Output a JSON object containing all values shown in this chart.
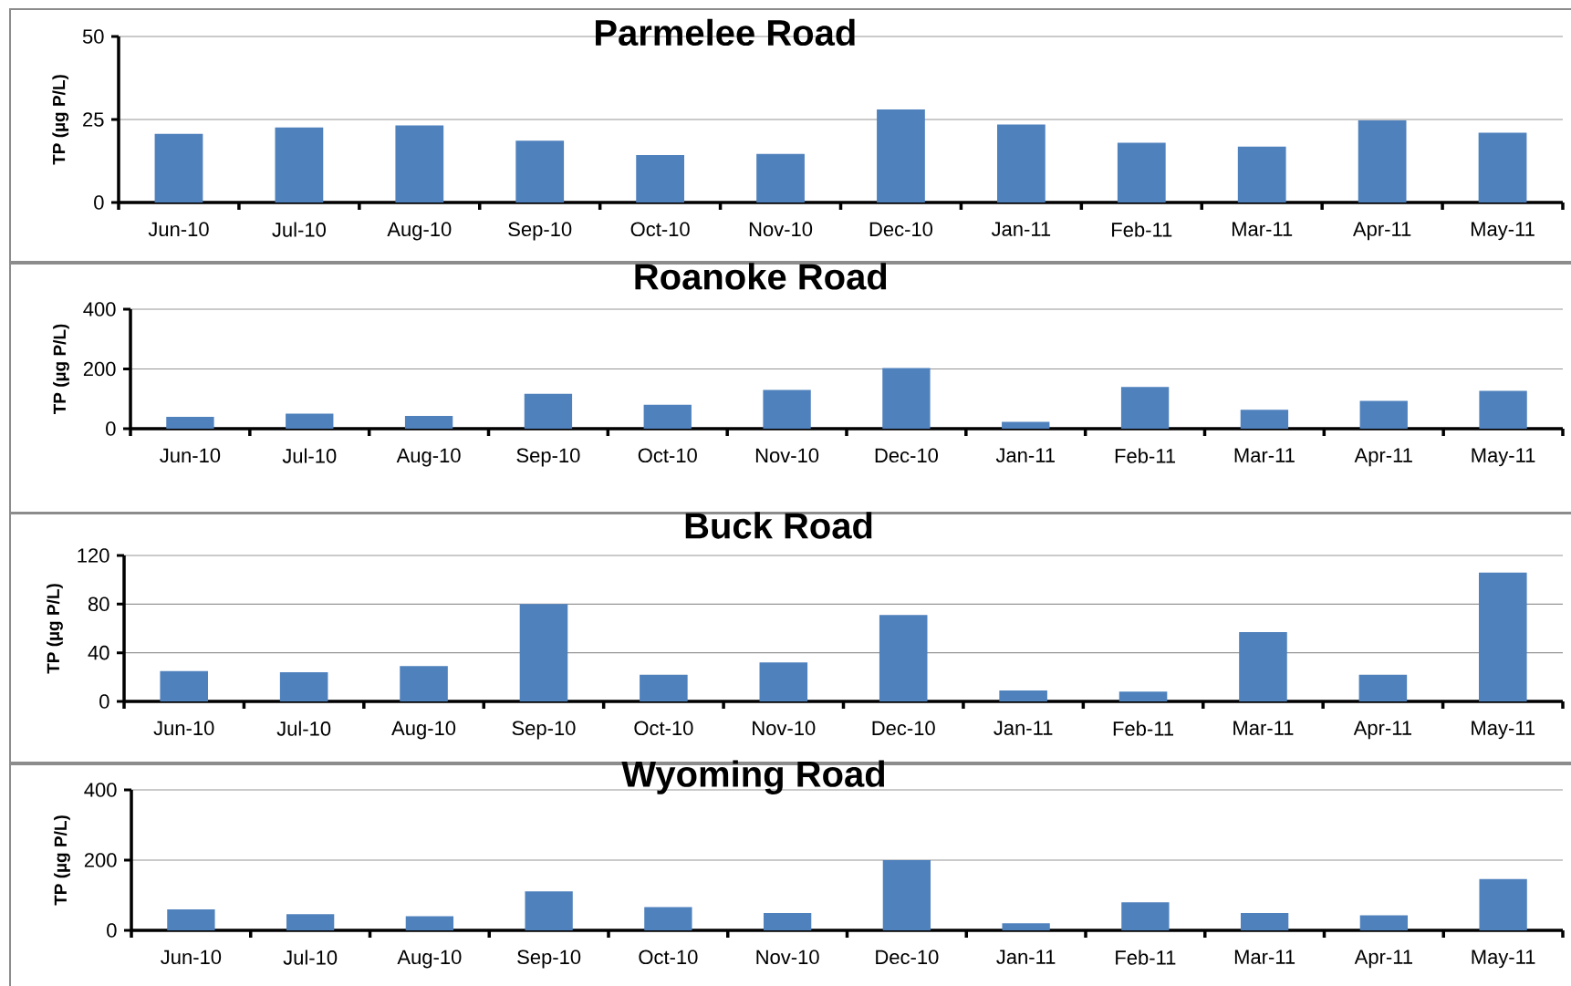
{
  "chart_data": [
    {
      "type": "bar",
      "title": "Parmelee Road",
      "ylabel": "TP (µg P/L)",
      "categories": [
        "Jun-10",
        "Jul-10",
        "Aug-10",
        "Sep-10",
        "Oct-10",
        "Nov-10",
        "Dec-10",
        "Jan-11",
        "Feb-11",
        "Mar-11",
        "Apr-11",
        "May-11"
      ],
      "values": [
        20.7,
        22.6,
        23.2,
        18.6,
        14.3,
        14.6,
        28,
        23.5,
        18,
        16.8,
        24.7,
        21
      ],
      "color": "#4f81bd",
      "ylim": [
        0,
        50
      ],
      "yticks": [
        0,
        25,
        50
      ],
      "grid": "y"
    },
    {
      "type": "bar",
      "title": "Roanoke Road",
      "ylabel": "TP (µg P/L)",
      "categories": [
        "Jun-10",
        "Jul-10",
        "Aug-10",
        "Sep-10",
        "Oct-10",
        "Nov-10",
        "Dec-10",
        "Jan-11",
        "Feb-11",
        "Mar-11",
        "Apr-11",
        "May-11"
      ],
      "values": [
        40,
        50,
        43,
        117,
        80,
        130,
        203,
        23,
        140,
        63,
        93,
        127
      ],
      "color": "#4f81bd",
      "ylim": [
        0,
        400
      ],
      "yticks": [
        0,
        200,
        400
      ],
      "grid": "y"
    },
    {
      "type": "bar",
      "title": "Buck Road",
      "ylabel": "TP (µg P/L)",
      "categories": [
        "Jun-10",
        "Jul-10",
        "Aug-10",
        "Sep-10",
        "Oct-10",
        "Nov-10",
        "Dec-10",
        "Jan-11",
        "Feb-11",
        "Mar-11",
        "Apr-11",
        "May-11"
      ],
      "values": [
        25,
        24,
        29,
        80,
        22,
        32,
        71,
        9,
        8,
        57,
        22,
        106
      ],
      "color": "#4f81bd",
      "ylim": [
        0,
        120
      ],
      "yticks": [
        0,
        40,
        80,
        120
      ],
      "grid": "y"
    },
    {
      "type": "bar",
      "title": "Wyoming Road",
      "ylabel": "TP (µg P/L)",
      "categories": [
        "Jun-10",
        "Jul-10",
        "Aug-10",
        "Sep-10",
        "Oct-10",
        "Nov-10",
        "Dec-10",
        "Jan-11",
        "Feb-11",
        "Mar-11",
        "Apr-11",
        "May-11"
      ],
      "values": [
        60,
        46,
        40,
        111,
        66,
        49,
        200,
        20,
        80,
        49,
        43,
        146
      ],
      "color": "#4f81bd",
      "ylim": [
        0,
        400
      ],
      "yticks": [
        0,
        200,
        400
      ],
      "grid": "y"
    }
  ]
}
